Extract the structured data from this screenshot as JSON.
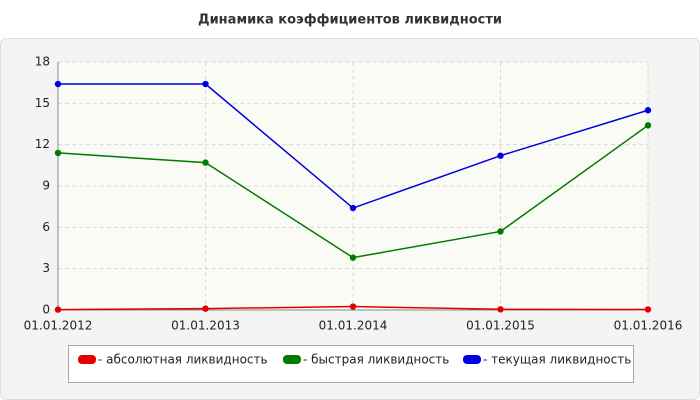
{
  "chart_data": {
    "type": "line",
    "title": "Динамика коэффициентов ликвидности",
    "categories": [
      "01.01.2012",
      "01.01.2013",
      "01.01.2014",
      "01.01.2015",
      "01.01.2016"
    ],
    "series": [
      {
        "name": "- абсолютная ликвидность",
        "color": "#e00000",
        "values": [
          0.03,
          0.1,
          0.25,
          0.05,
          0.04
        ]
      },
      {
        "name": "- быстрая ликвидность",
        "color": "#007a00",
        "values": [
          11.4,
          10.7,
          3.8,
          5.7,
          13.4
        ]
      },
      {
        "name": "- текущая ликвидность",
        "color": "#0000dd",
        "values": [
          16.4,
          16.4,
          7.4,
          11.2,
          14.5
        ]
      }
    ],
    "ylim": [
      0,
      18
    ],
    "yticks": [
      0,
      3,
      6,
      9,
      12,
      15,
      18
    ],
    "grid": true,
    "legend": "bottom"
  }
}
